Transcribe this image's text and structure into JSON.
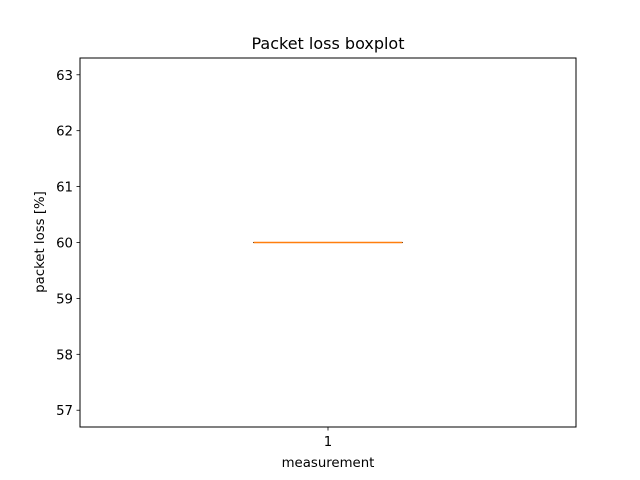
{
  "chart_data": {
    "type": "boxplot",
    "title": "Packet loss boxplot",
    "xlabel": "measurement",
    "ylabel": "packet loss [%]",
    "categories": [
      "1"
    ],
    "boxes": [
      {
        "category": "1",
        "min": 60,
        "q1": 60,
        "median": 60,
        "q3": 60,
        "max": 60
      }
    ],
    "ylim": [
      56.7,
      63.3
    ],
    "yticks": [
      57,
      58,
      59,
      60,
      61,
      62,
      63
    ],
    "grid": false,
    "colors": {
      "box": "#000000",
      "median": "#ff7f0e"
    }
  }
}
